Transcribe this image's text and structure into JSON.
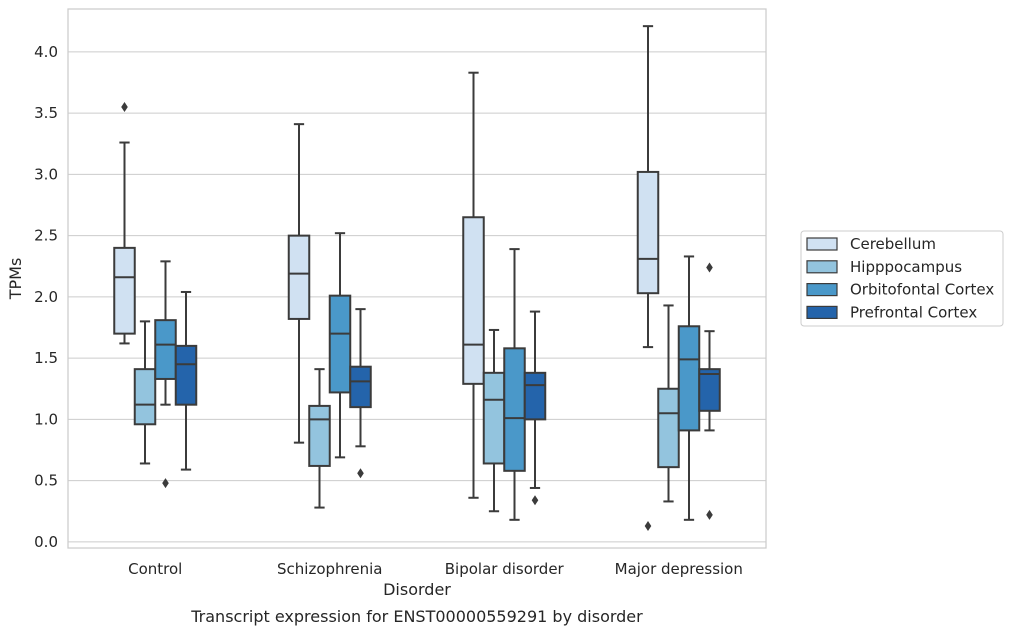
{
  "caption": "Transcript expression for ENST00000559291 by disorder",
  "chart_data": {
    "type": "boxplot",
    "xlabel": "Disorder",
    "ylabel": "TPMs",
    "categories": [
      "Control",
      "Schizophrenia",
      "Bipolar disorder",
      "Major depression"
    ],
    "ylim": [
      -0.05,
      4.35
    ],
    "yticks": [
      0.0,
      0.5,
      1.0,
      1.5,
      2.0,
      2.5,
      3.0,
      3.5,
      4.0
    ],
    "ytick_labels": [
      "0.0",
      "0.5",
      "1.0",
      "1.5",
      "2.0",
      "2.5",
      "3.0",
      "3.5",
      "4.0"
    ],
    "grid": true,
    "legend_position": "right",
    "colors": {
      "Cerebellum": "#d0e1f2",
      "Hipppocampus": "#93c4de",
      "Orbitofontal Cortex": "#4a98c9",
      "Prefrontal Cortex": "#2464ab"
    },
    "series": [
      {
        "name": "Cerebellum",
        "boxes": [
          {
            "whisker_low": 1.62,
            "q1": 1.7,
            "median": 2.16,
            "q3": 2.4,
            "whisker_high": 3.26,
            "outliers": [
              3.55
            ]
          },
          {
            "whisker_low": 0.81,
            "q1": 1.82,
            "median": 2.19,
            "q3": 2.5,
            "whisker_high": 3.41,
            "outliers": []
          },
          {
            "whisker_low": 0.36,
            "q1": 1.29,
            "median": 1.61,
            "q3": 2.65,
            "whisker_high": 3.83,
            "outliers": []
          },
          {
            "whisker_low": 1.59,
            "q1": 2.03,
            "median": 2.31,
            "q3": 3.02,
            "whisker_high": 4.21,
            "outliers": [
              0.13
            ]
          }
        ]
      },
      {
        "name": "Hipppocampus",
        "boxes": [
          {
            "whisker_low": 0.64,
            "q1": 0.96,
            "median": 1.12,
            "q3": 1.41,
            "whisker_high": 1.8,
            "outliers": []
          },
          {
            "whisker_low": 0.28,
            "q1": 0.62,
            "median": 1.0,
            "q3": 1.11,
            "whisker_high": 1.41,
            "outliers": []
          },
          {
            "whisker_low": 0.25,
            "q1": 0.64,
            "median": 1.16,
            "q3": 1.38,
            "whisker_high": 1.73,
            "outliers": []
          },
          {
            "whisker_low": 0.33,
            "q1": 0.61,
            "median": 1.05,
            "q3": 1.25,
            "whisker_high": 1.93,
            "outliers": []
          }
        ]
      },
      {
        "name": "Orbitofontal Cortex",
        "boxes": [
          {
            "whisker_low": 1.12,
            "q1": 1.33,
            "median": 1.61,
            "q3": 1.81,
            "whisker_high": 2.29,
            "outliers": [
              0.48
            ]
          },
          {
            "whisker_low": 0.69,
            "q1": 1.22,
            "median": 1.7,
            "q3": 2.01,
            "whisker_high": 2.52,
            "outliers": []
          },
          {
            "whisker_low": 0.18,
            "q1": 0.58,
            "median": 1.01,
            "q3": 1.58,
            "whisker_high": 2.39,
            "outliers": []
          },
          {
            "whisker_low": 0.18,
            "q1": 0.91,
            "median": 1.49,
            "q3": 1.76,
            "whisker_high": 2.33,
            "outliers": []
          }
        ]
      },
      {
        "name": "Prefrontal Cortex",
        "boxes": [
          {
            "whisker_low": 0.59,
            "q1": 1.12,
            "median": 1.45,
            "q3": 1.6,
            "whisker_high": 2.04,
            "outliers": []
          },
          {
            "whisker_low": 0.78,
            "q1": 1.1,
            "median": 1.31,
            "q3": 1.43,
            "whisker_high": 1.9,
            "outliers": [
              0.56
            ]
          },
          {
            "whisker_low": 0.44,
            "q1": 1.0,
            "median": 1.28,
            "q3": 1.38,
            "whisker_high": 1.88,
            "outliers": [
              0.34
            ]
          },
          {
            "whisker_low": 0.91,
            "q1": 1.07,
            "median": 1.37,
            "q3": 1.41,
            "whisker_high": 1.72,
            "outliers": [
              2.24,
              0.22
            ]
          }
        ]
      }
    ]
  }
}
